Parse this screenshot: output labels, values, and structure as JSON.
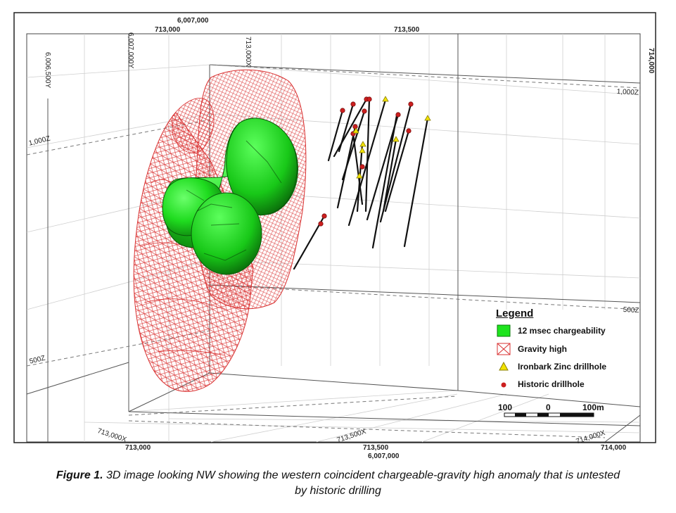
{
  "figure": {
    "caption_label": "Figure 1.",
    "caption_line1": " 3D image looking NW showing the western coincident chargeable-gravity high anomaly that is untested",
    "caption_line2": "by historic drilling"
  },
  "top_axis": {
    "northing": "6,007,000",
    "easting_left": "713,000",
    "easting_right": "713,500"
  },
  "bottom_axis": {
    "easting_1": "713,000",
    "easting_2": "713,500",
    "northing": "6,007,000",
    "easting_3": "714,000"
  },
  "right_axis": {
    "easting": "714,000"
  },
  "grid_labels": {
    "x_713000_top": "713,000X",
    "y_6007000_top": "6,007,000Y",
    "y_6006500": "6,006,500Y",
    "z_1000_left": "1,000Z",
    "z_1000_right": "1,000Z",
    "z_500_left": "500Z",
    "z_500_right": "500Z",
    "x_713000_floor": "713,000X",
    "x_713500_floor": "713,500X",
    "x_714000_floor": "714,000X"
  },
  "legend": {
    "title": "Legend",
    "items": [
      {
        "label": "12 msec chargeability",
        "symbol": "green-box",
        "color": "#1ee41e"
      },
      {
        "label": "Gravity high",
        "symbol": "red-mesh-box",
        "color": "#d93030"
      },
      {
        "label": "Ironbark Zinc drillhole",
        "symbol": "yellow-triangle",
        "color": "#f2e200"
      },
      {
        "label": "Historic drillhole",
        "symbol": "red-dot",
        "color": "#cc1f1f"
      }
    ]
  },
  "scale_bar": {
    "left_label": "100",
    "mid_label": "0",
    "right_label": "100m"
  },
  "colors": {
    "chargeability": "#1ee41e",
    "gravity_mesh": "#d93030",
    "drill_line": "#111111",
    "historic_collar": "#cc1f1f",
    "ironbark_collar": "#f2e200"
  }
}
